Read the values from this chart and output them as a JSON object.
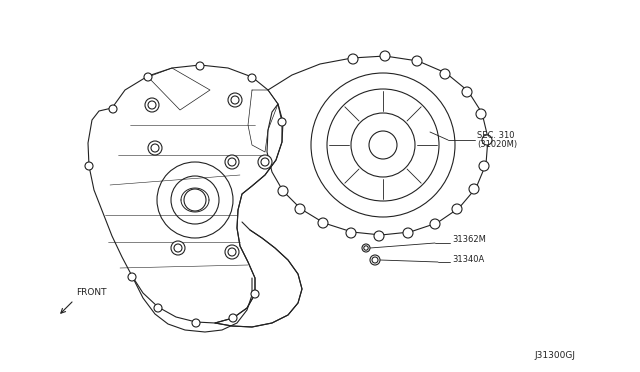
{
  "background_color": "#ffffff",
  "line_color": "#222222",
  "labels": {
    "sec310_line1": "SEC. 310",
    "sec310_line2": "(31020M)",
    "part1": "31362M",
    "part2": "31340A",
    "front": "FRONT",
    "diagram_id": "J31300GJ"
  },
  "figsize": [
    6.4,
    3.72
  ],
  "dpi": 100
}
